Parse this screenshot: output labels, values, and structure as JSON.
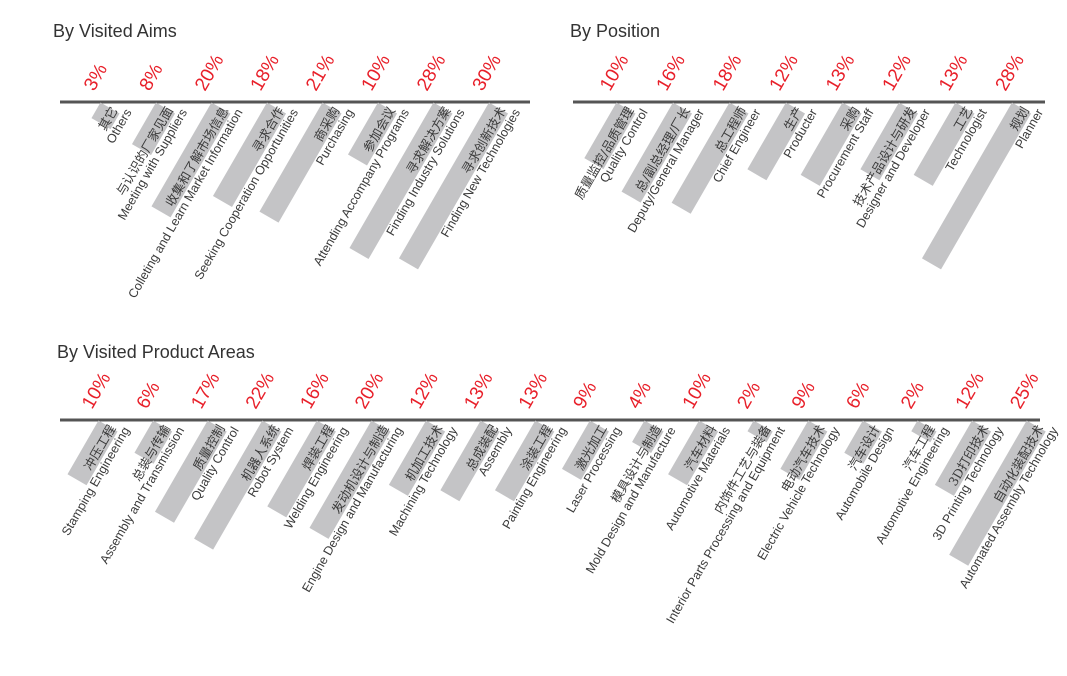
{
  "chart_data": [
    {
      "type": "bar",
      "title": "By Visited Aims",
      "unit": "%",
      "categories_zh": [
        "其它",
        "与认识的厂家见面",
        "收集和了解市场信息",
        "寻求合作",
        "商采购",
        "参加会议",
        "寻求解决方案",
        "寻求创新技术"
      ],
      "categories": [
        "Others",
        "Meeting with Suppliers",
        "Colleting and Learn Market Information",
        "Seeking Cooperation Opportunities",
        "Purchasing",
        "Attending Accompany Programs",
        "Finding Industry Solutions",
        "Finding New Technologies"
      ],
      "labels": [
        "3%",
        "8%",
        "20%",
        "18%",
        "21%",
        "10%",
        "28%",
        "30%"
      ],
      "values": [
        3,
        8,
        20,
        18,
        21,
        10,
        28,
        30
      ]
    },
    {
      "type": "bar",
      "title": "By Position",
      "unit": "%",
      "categories_zh": [
        "质量监控/品质管理",
        "总/副总经理/厂长",
        "总工程师",
        "生产",
        "采购",
        "技术产品设计与研发",
        "工艺",
        "规划"
      ],
      "categories": [
        "Quality Control",
        "Deputy/General Manager",
        "Chief Engineer",
        "Producter",
        "Procurement Staff",
        "Designer and Developer",
        "Technologist",
        "Planner"
      ],
      "labels": [
        "10%",
        "16%",
        "18%",
        "12%",
        "13%",
        "12%",
        "13%",
        "28%"
      ],
      "values": [
        10,
        16,
        18,
        12,
        13,
        12,
        13,
        28
      ]
    },
    {
      "type": "bar",
      "title": "By Visited Product Areas",
      "unit": "%",
      "categories_zh": [
        "冲压工程",
        "总装与传输",
        "质量控制",
        "机器人系统",
        "焊装工程",
        "发动机设计与制造",
        "机加工技术",
        "总成装配",
        "涂装工程",
        "激光加工",
        "模具设计与制造",
        "汽车材料",
        "内饰件工艺与装备",
        "电动汽车技术",
        "汽车设计",
        "汽车工程",
        "3D打印技术",
        "自动化装配技术"
      ],
      "categories": [
        "Stamping Engineering",
        "Assembly and Transmission",
        "Quality Control",
        "Robot System",
        "Welding Engineering",
        "Engine Design and Manufacturing",
        "Machining Technology",
        "Assembly",
        "Painting Engineering",
        "Laser Processing",
        "Mold Design and Manufacture",
        "Automotive Materials",
        "Interior Parts Processing and Equipment",
        "Electric Vehicle Technology",
        "Automobile Design",
        "Automotive Engineering",
        "3D Printing Technology",
        "Automated Assembly Technology"
      ],
      "labels": [
        "10%",
        "6%",
        "17%",
        "22%",
        "16%",
        "20%",
        "12%",
        "13%",
        "13%",
        "9%",
        "4%",
        "10%",
        "2%",
        "9%",
        "6%",
        "2%",
        "12%",
        "25%"
      ],
      "values": [
        10,
        6,
        17,
        22,
        16,
        20,
        12,
        13,
        13,
        9,
        4,
        10,
        2,
        9,
        6,
        2,
        12,
        25
      ]
    }
  ],
  "colors": {
    "bar": "#c4c4c6",
    "axis": "#555555",
    "percent": "#e8202a",
    "text": "#3a3a3a"
  }
}
